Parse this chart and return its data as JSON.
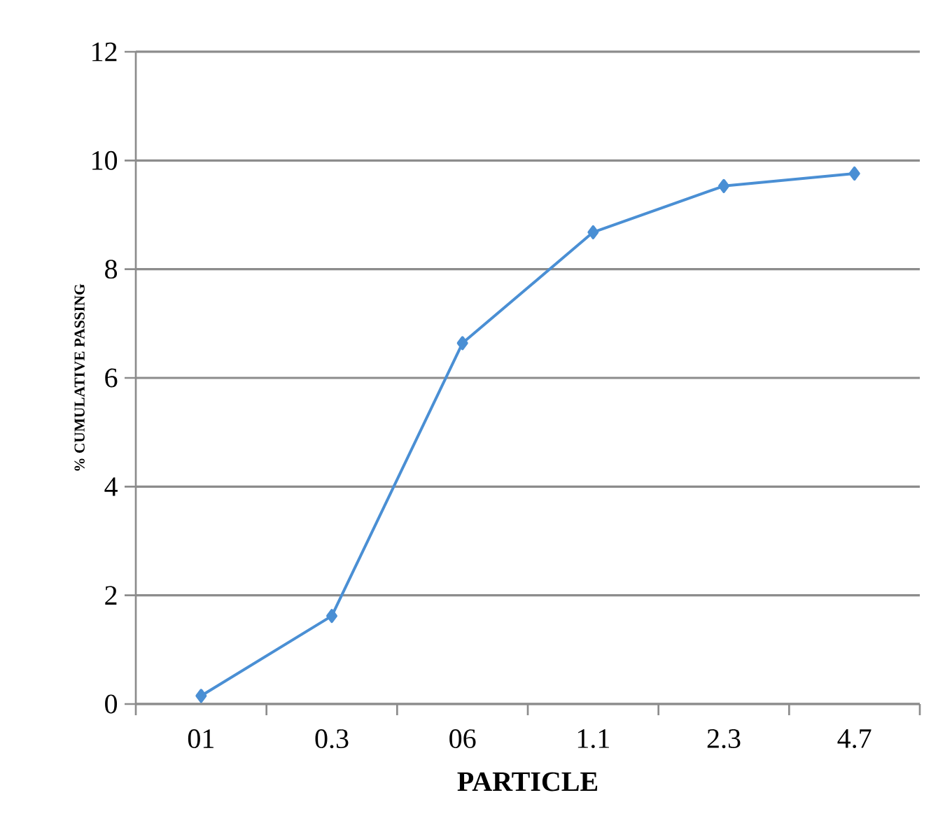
{
  "chart_data": {
    "type": "line",
    "xlabel": "PARTICLE",
    "ylabel": "% CUMULATIVE PASSING",
    "categories": [
      "01",
      "0.3",
      "06",
      "1.1",
      "2.3",
      "4.7"
    ],
    "series": [
      {
        "color": "#4a8fd4",
        "values": [
          0.15,
          1.62,
          6.64,
          8.68,
          9.53,
          9.76
        ]
      }
    ],
    "ylim": [
      0,
      12
    ],
    "yticks": [
      0,
      2,
      4,
      6,
      8,
      10,
      12
    ],
    "grid": "y",
    "marker": "diamond",
    "line_style": "solid"
  }
}
